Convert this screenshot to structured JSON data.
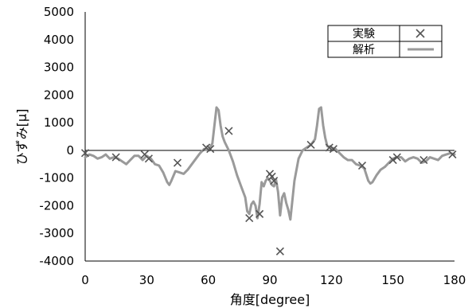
{
  "chart_data": {
    "type": "scatter",
    "xlabel": "角度[degree]",
    "ylabel": "ひずみ[μ]",
    "xlim": [
      0,
      180
    ],
    "ylim": [
      -4000,
      5000
    ],
    "xticks": [
      0,
      30,
      60,
      90,
      120,
      150,
      180
    ],
    "yticks": [
      5000,
      4000,
      3000,
      2000,
      1000,
      0,
      -1000,
      -2000,
      -3000,
      -4000
    ],
    "grid": false,
    "legend_position": "top-right",
    "series": [
      {
        "name": "実験",
        "kind": "scatter",
        "marker": "x",
        "color": "#555555",
        "x": [
          0,
          15,
          29,
          31,
          45,
          59,
          61,
          70,
          80,
          85,
          90,
          91,
          92,
          95,
          110,
          119,
          121,
          135,
          150,
          152,
          165,
          179
        ],
        "y": [
          -100,
          -250,
          -150,
          -300,
          -450,
          100,
          50,
          700,
          -2450,
          -2300,
          -850,
          -950,
          -1100,
          -3650,
          200,
          100,
          50,
          -550,
          -350,
          -250,
          -350,
          -150
        ]
      },
      {
        "name": "解析",
        "kind": "line",
        "color": "#9a9a9a",
        "x": [
          0,
          2,
          4,
          6,
          8,
          10,
          12,
          14,
          16,
          18,
          20,
          22,
          24,
          26,
          28,
          30,
          32,
          34,
          36,
          38,
          40,
          41,
          42,
          44,
          46,
          48,
          50,
          52,
          54,
          56,
          58,
          60,
          62,
          63,
          64,
          65,
          66,
          67,
          68,
          70,
          72,
          74,
          76,
          78,
          79,
          80,
          81,
          82,
          83,
          84,
          85,
          86,
          87,
          88,
          89,
          90,
          91,
          92,
          93,
          94,
          95,
          96,
          97,
          98,
          99,
          100,
          102,
          104,
          106,
          108,
          110,
          112,
          113,
          114,
          115,
          116,
          117,
          118,
          120,
          122,
          124,
          126,
          128,
          130,
          132,
          134,
          136,
          138,
          139,
          140,
          142,
          144,
          146,
          148,
          150,
          152,
          154,
          156,
          158,
          160,
          162,
          164,
          166,
          168,
          170,
          172,
          174,
          176,
          178,
          180
        ],
        "y": [
          -250,
          -150,
          -200,
          -300,
          -250,
          -150,
          -300,
          -250,
          -300,
          -400,
          -500,
          -350,
          -200,
          -200,
          -350,
          -200,
          -300,
          -500,
          -550,
          -800,
          -1150,
          -1250,
          -1100,
          -750,
          -800,
          -850,
          -700,
          -500,
          -300,
          -100,
          50,
          0,
          250,
          900,
          1550,
          1450,
          900,
          500,
          300,
          0,
          -400,
          -900,
          -1300,
          -1700,
          -2200,
          -2300,
          -1950,
          -1850,
          -2000,
          -2450,
          -1950,
          -1150,
          -1300,
          -1100,
          -1000,
          -1100,
          -1250,
          -1300,
          -1050,
          -1500,
          -2350,
          -1700,
          -1550,
          -1900,
          -2150,
          -2500,
          -1100,
          -300,
          0,
          100,
          200,
          400,
          900,
          1500,
          1550,
          900,
          450,
          150,
          100,
          50,
          -100,
          -250,
          -350,
          -350,
          -500,
          -550,
          -650,
          -1100,
          -1200,
          -1150,
          -900,
          -700,
          -600,
          -450,
          -300,
          -250,
          -250,
          -400,
          -300,
          -250,
          -300,
          -450,
          -400,
          -250,
          -300,
          -350,
          -200,
          -150,
          -100,
          -150
        ]
      }
    ]
  }
}
